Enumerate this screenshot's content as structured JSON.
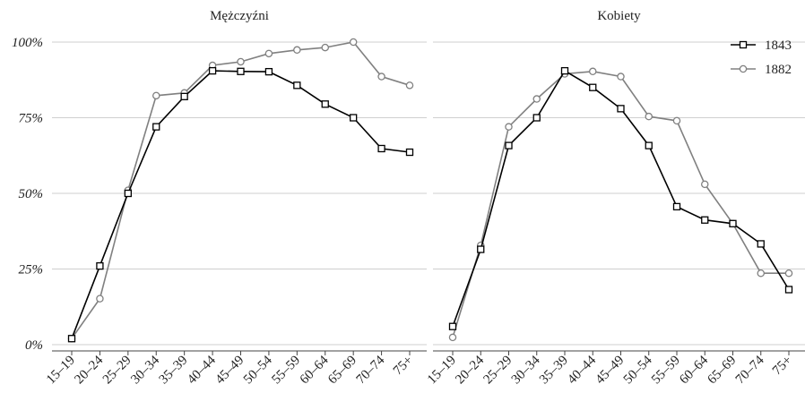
{
  "chart_data": [
    {
      "type": "line",
      "title": "Mężczyźni",
      "categories": [
        "15–19",
        "20–24",
        "25–29",
        "30–34",
        "35–39",
        "40–44",
        "45–49",
        "50–54",
        "55–59",
        "60–64",
        "65–69",
        "70–74",
        "75+"
      ],
      "y_ticks": [
        "0%",
        "25%",
        "50%",
        "75%",
        "100%"
      ],
      "ylim": [
        0,
        100
      ],
      "grid": true,
      "series": [
        {
          "name": "1843",
          "color": "#000000",
          "marker": "square",
          "values": [
            2,
            26,
            50,
            72,
            82,
            90.5,
            90.3,
            90.2,
            85.7,
            79.5,
            75,
            64.8,
            63.6
          ]
        },
        {
          "name": "1882",
          "color": "#808080",
          "marker": "circle",
          "values": [
            2,
            15.2,
            51,
            82.3,
            83.2,
            92.3,
            93.5,
            96.2,
            97.4,
            98.2,
            100,
            88.6,
            85.7
          ]
        }
      ]
    },
    {
      "type": "line",
      "title": "Kobiety",
      "categories": [
        "15–19",
        "20–24",
        "25–29",
        "30–34",
        "35–39",
        "40–44",
        "45–49",
        "50–54",
        "55–59",
        "60–64",
        "65–69",
        "70–74",
        "75+"
      ],
      "ylim": [
        0,
        100
      ],
      "grid": true,
      "legend": {
        "position": "top-right",
        "entries": [
          "1843",
          "1882"
        ]
      },
      "series": [
        {
          "name": "1843",
          "color": "#000000",
          "marker": "square",
          "values": [
            6,
            31.5,
            65.8,
            75,
            90.5,
            85,
            78,
            65.8,
            45.6,
            41.2,
            40,
            33.3,
            18.2
          ]
        },
        {
          "name": "1882",
          "color": "#808080",
          "marker": "circle",
          "values": [
            2.4,
            32.8,
            72,
            81.2,
            89.5,
            90.3,
            88.6,
            75.4,
            74,
            53,
            40,
            23.6,
            23.6
          ]
        }
      ]
    }
  ]
}
